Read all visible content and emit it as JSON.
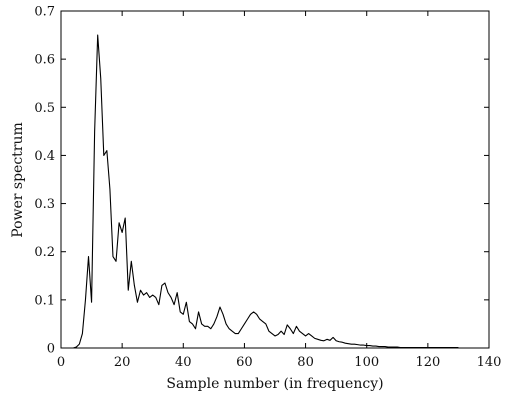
{
  "chart_data": {
    "type": "line",
    "xlabel": "Sample number (in frequency)",
    "ylabel": "Power spectrum",
    "xlim": [
      0,
      140
    ],
    "ylim": [
      0,
      0.7
    ],
    "xticks": [
      0,
      20,
      40,
      60,
      80,
      100,
      120,
      140
    ],
    "yticks": [
      0,
      0.1,
      0.2,
      0.3,
      0.4,
      0.5,
      0.6,
      0.7
    ],
    "xtick_labels": [
      "0",
      "20",
      "40",
      "60",
      "80",
      "100",
      "120",
      "140"
    ],
    "ytick_labels": [
      "0",
      "0.1",
      "0.2",
      "0.3",
      "0.4",
      "0.5",
      "0.6",
      "0.7"
    ],
    "grid": false,
    "line_color": "#000000",
    "series": [
      {
        "x": [
          1,
          2,
          3,
          4,
          5,
          6,
          7,
          8,
          9,
          10,
          11,
          12,
          13,
          14,
          15,
          16,
          17,
          18,
          19,
          20,
          21,
          22,
          23,
          24,
          25,
          26,
          27,
          28,
          29,
          30,
          31,
          32,
          33,
          34,
          35,
          36,
          37,
          38,
          39,
          40,
          41,
          42,
          43,
          44,
          45,
          46,
          47,
          48,
          49,
          50,
          51,
          52,
          53,
          54,
          55,
          56,
          57,
          58,
          59,
          60,
          61,
          62,
          63,
          64,
          65,
          66,
          67,
          68,
          69,
          70,
          71,
          72,
          73,
          74,
          75,
          76,
          77,
          78,
          79,
          80,
          81,
          82,
          83,
          84,
          85,
          86,
          87,
          88,
          89,
          90,
          91,
          92,
          93,
          94,
          95,
          96,
          97,
          98,
          99,
          100,
          101,
          102,
          103,
          104,
          105,
          106,
          107,
          108,
          109,
          110,
          111,
          112,
          113,
          114,
          115,
          116,
          117,
          118,
          119,
          120,
          121,
          122,
          123,
          124,
          125,
          126,
          127,
          128,
          129,
          130
        ],
        "values": [
          0,
          0,
          0,
          0,
          0.002,
          0.008,
          0.03,
          0.1,
          0.19,
          0.095,
          0.45,
          0.65,
          0.56,
          0.4,
          0.41,
          0.33,
          0.19,
          0.18,
          0.26,
          0.24,
          0.27,
          0.12,
          0.18,
          0.13,
          0.095,
          0.12,
          0.11,
          0.115,
          0.105,
          0.11,
          0.105,
          0.09,
          0.13,
          0.135,
          0.115,
          0.105,
          0.09,
          0.115,
          0.075,
          0.07,
          0.095,
          0.055,
          0.05,
          0.04,
          0.075,
          0.05,
          0.045,
          0.045,
          0.04,
          0.05,
          0.065,
          0.085,
          0.07,
          0.05,
          0.04,
          0.035,
          0.03,
          0.03,
          0.04,
          0.05,
          0.06,
          0.07,
          0.075,
          0.07,
          0.06,
          0.055,
          0.05,
          0.035,
          0.03,
          0.025,
          0.028,
          0.035,
          0.028,
          0.048,
          0.04,
          0.03,
          0.045,
          0.035,
          0.03,
          0.025,
          0.03,
          0.025,
          0.02,
          0.018,
          0.016,
          0.015,
          0.018,
          0.016,
          0.022,
          0.015,
          0.013,
          0.012,
          0.01,
          0.009,
          0.008,
          0.008,
          0.007,
          0.006,
          0.006,
          0.005,
          0.005,
          0.004,
          0.004,
          0.003,
          0.003,
          0.003,
          0.002,
          0.002,
          0.002,
          0.002,
          0.001,
          0.001,
          0.001,
          0.001,
          0.001,
          0.001,
          0.001,
          0.001,
          0.001,
          0.001,
          0.001,
          0.001,
          0.001,
          0.001,
          0.001,
          0.001,
          0.001,
          0.001,
          0.001,
          0.001
        ]
      }
    ]
  }
}
